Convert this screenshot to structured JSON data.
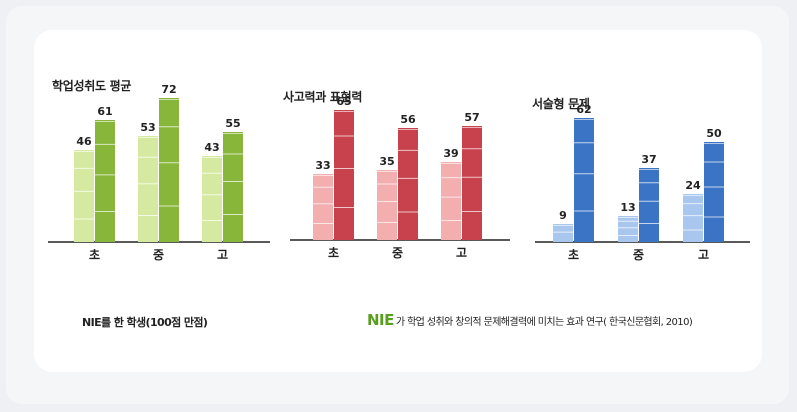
{
  "chart_data": [
    {
      "type": "bar",
      "title": "학업성취도 평균",
      "categories": [
        "초",
        "중",
        "고"
      ],
      "series": [
        {
          "values": [
            46,
            53,
            43
          ]
        },
        {
          "values": [
            61,
            72,
            55
          ]
        }
      ],
      "ylim": [
        0,
        80
      ],
      "grid": false,
      "colors": {
        "light": "#d5eaa0",
        "dark": "#88b63a"
      }
    },
    {
      "type": "bar",
      "title": "사고력과 표현력",
      "categories": [
        "초",
        "중",
        "고"
      ],
      "series": [
        {
          "values": [
            33,
            35,
            39
          ]
        },
        {
          "values": [
            65,
            56,
            57
          ]
        }
      ],
      "ylim": [
        0,
        80
      ],
      "grid": false,
      "colors": {
        "light": "#f3aeb0",
        "dark": "#c8424e"
      }
    },
    {
      "type": "bar",
      "title": "서술형 문제",
      "categories": [
        "초",
        "중",
        "고"
      ],
      "series": [
        {
          "values": [
            9,
            13,
            24
          ]
        },
        {
          "values": [
            62,
            37,
            50
          ]
        }
      ],
      "ylim": [
        0,
        80
      ],
      "grid": false,
      "colors": {
        "light": "#a9c6ee",
        "dark": "#3b74c4"
      }
    }
  ],
  "footnote_left": "NIE를 한 학생(100점 만점)",
  "footnote_right_brand": "NIE",
  "footnote_right_text": "가 학업 성취와 창의적 문제해결력에 미치는 효과 연구( 한국신문협회, 2010)"
}
